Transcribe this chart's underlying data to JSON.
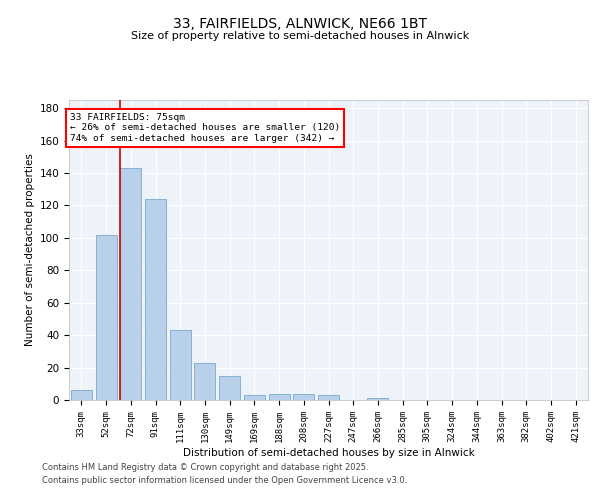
{
  "title_line1": "33, FAIRFIELDS, ALNWICK, NE66 1BT",
  "title_line2": "Size of property relative to semi-detached houses in Alnwick",
  "xlabel": "Distribution of semi-detached houses by size in Alnwick",
  "ylabel": "Number of semi-detached properties",
  "bar_labels": [
    "33sqm",
    "52sqm",
    "72sqm",
    "91sqm",
    "111sqm",
    "130sqm",
    "149sqm",
    "169sqm",
    "188sqm",
    "208sqm",
    "227sqm",
    "247sqm",
    "266sqm",
    "285sqm",
    "305sqm",
    "324sqm",
    "344sqm",
    "363sqm",
    "382sqm",
    "402sqm",
    "421sqm"
  ],
  "bar_values": [
    6,
    102,
    143,
    124,
    43,
    23,
    15,
    3,
    4,
    4,
    3,
    0,
    1,
    0,
    0,
    0,
    0,
    0,
    0,
    0,
    0
  ],
  "bar_color": "#b8d0ea",
  "bar_edge_color": "#7aaad0",
  "highlight_line_color": "#cc0000",
  "annotation_text": "33 FAIRFIELDS: 75sqm\n← 26% of semi-detached houses are smaller (120)\n74% of semi-detached houses are larger (342) →",
  "ylim": [
    0,
    185
  ],
  "yticks": [
    0,
    20,
    40,
    60,
    80,
    100,
    120,
    140,
    160,
    180
  ],
  "footer_line1": "Contains HM Land Registry data © Crown copyright and database right 2025.",
  "footer_line2": "Contains public sector information licensed under the Open Government Licence v3.0.",
  "background_color": "#eef2f9",
  "grid_color": "#ffffff",
  "fig_bg_color": "#ffffff"
}
